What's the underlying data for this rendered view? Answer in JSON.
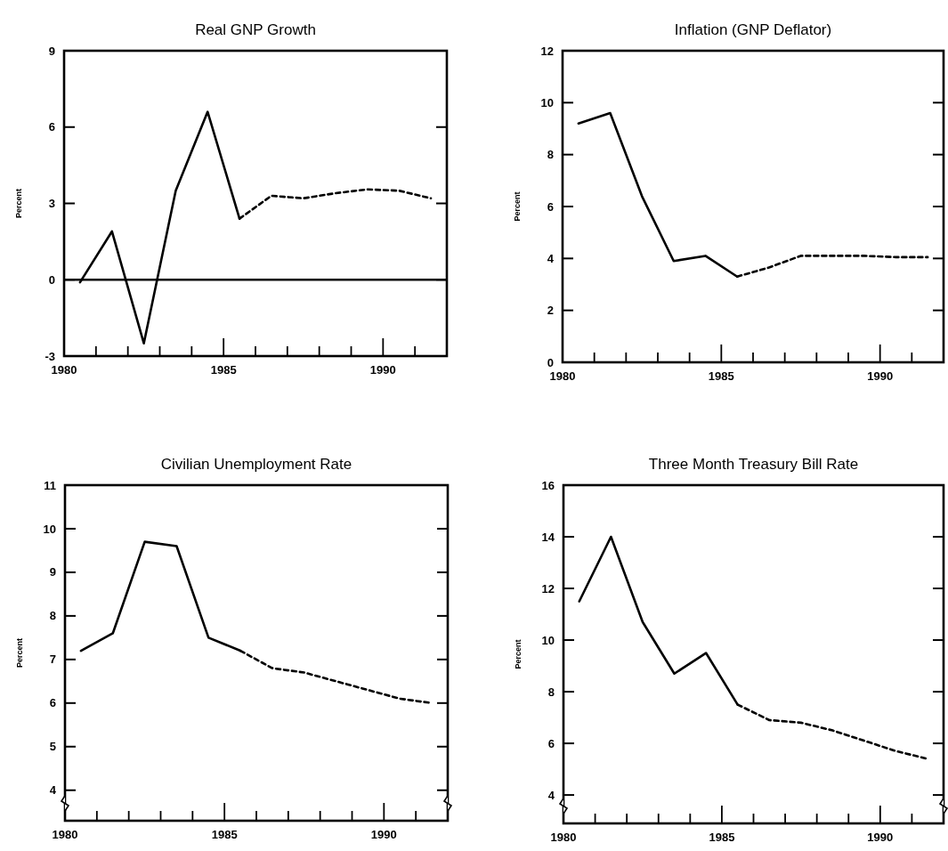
{
  "chart_data": [
    {
      "type": "line",
      "title": "Real GNP Growth",
      "ylabel": "Percent",
      "xlim": [
        1980,
        1992
      ],
      "xticks": [
        1980,
        {
          "value": 1981,
          "label": null
        },
        {
          "value": 1982,
          "label": null
        },
        {
          "value": 1983,
          "label": null
        },
        {
          "value": 1984,
          "label": null
        },
        1985,
        {
          "value": 1986,
          "label": null
        },
        {
          "value": 1987,
          "label": null
        },
        {
          "value": 1988,
          "label": null
        },
        {
          "value": 1989,
          "label": null
        },
        1990,
        {
          "value": 1991,
          "label": null
        }
      ],
      "ylim": [
        -3,
        9
      ],
      "yticks": [
        -3,
        0,
        3,
        6,
        9
      ],
      "ref_lines": [
        {
          "axis": "y",
          "value": 0,
          "color": "#000000"
        }
      ],
      "series": [
        {
          "color": "#000000",
          "line_style": "solid",
          "x": [
            1980.5,
            1981.5,
            1982.5,
            1983.5,
            1984.5,
            1985.5
          ],
          "values": [
            -0.1,
            1.9,
            -2.5,
            3.5,
            6.6,
            2.4
          ]
        },
        {
          "color": "#000000",
          "line_style": "dashed",
          "x": [
            1985.5,
            1986.5,
            1987.5,
            1988.5,
            1989.5,
            1990.5,
            1991.5
          ],
          "values": [
            2.4,
            3.3,
            3.2,
            3.4,
            3.55,
            3.5,
            3.2
          ]
        }
      ]
    },
    {
      "type": "line",
      "title": "Inflation (GNP Deflator)",
      "ylabel": "Percent",
      "xlim": [
        1980,
        1992
      ],
      "xticks": [
        1980,
        {
          "value": 1981,
          "label": null
        },
        {
          "value": 1982,
          "label": null
        },
        {
          "value": 1983,
          "label": null
        },
        {
          "value": 1984,
          "label": null
        },
        1985,
        {
          "value": 1986,
          "label": null
        },
        {
          "value": 1987,
          "label": null
        },
        {
          "value": 1988,
          "label": null
        },
        {
          "value": 1989,
          "label": null
        },
        1990,
        {
          "value": 1991,
          "label": null
        }
      ],
      "ylim": [
        0,
        12
      ],
      "yticks": [
        0,
        2,
        4,
        6,
        8,
        10,
        12
      ],
      "series": [
        {
          "color": "#000000",
          "line_style": "solid",
          "x": [
            1980.5,
            1981.5,
            1982.5,
            1983.5,
            1984.5,
            1985.5
          ],
          "values": [
            9.2,
            9.6,
            6.4,
            3.9,
            4.1,
            3.3
          ]
        },
        {
          "color": "#000000",
          "line_style": "dashed",
          "x": [
            1985.5,
            1986.5,
            1987.5,
            1988.5,
            1989.5,
            1990.5,
            1991.5
          ],
          "values": [
            3.3,
            3.65,
            4.1,
            4.1,
            4.1,
            4.05,
            4.05
          ]
        }
      ]
    },
    {
      "type": "line",
      "title": "Civilian Unemployment Rate",
      "ylabel": "Percent",
      "xlim": [
        1980,
        1992
      ],
      "xticks": [
        1980,
        {
          "value": 1981,
          "label": null
        },
        {
          "value": 1982,
          "label": null
        },
        {
          "value": 1983,
          "label": null
        },
        {
          "value": 1984,
          "label": null
        },
        1985,
        {
          "value": 1986,
          "label": null
        },
        {
          "value": 1987,
          "label": null
        },
        {
          "value": 1988,
          "label": null
        },
        {
          "value": 1989,
          "label": null
        },
        1990,
        {
          "value": 1991,
          "label": null
        }
      ],
      "ylim": [
        3.3,
        11
      ],
      "yticks": [
        4,
        5,
        6,
        7,
        8,
        9,
        10,
        11
      ],
      "series": [
        {
          "color": "#000000",
          "line_style": "solid",
          "x": [
            1980.5,
            1981.5,
            1982.5,
            1983.5,
            1984.5,
            1985.5
          ],
          "values": [
            7.2,
            7.6,
            9.7,
            9.6,
            7.5,
            7.2
          ]
        },
        {
          "color": "#000000",
          "line_style": "dashed",
          "x": [
            1985.5,
            1986.5,
            1987.5,
            1988.5,
            1989.5,
            1990.5,
            1991.5
          ],
          "values": [
            7.2,
            6.8,
            6.7,
            6.5,
            6.3,
            6.1,
            6.0
          ]
        }
      ]
    },
    {
      "type": "line",
      "title": "Three Month Treasury Bill Rate",
      "ylabel": "Percent",
      "xlim": [
        1980,
        1992
      ],
      "xticks": [
        1980,
        {
          "value": 1981,
          "label": null
        },
        {
          "value": 1982,
          "label": null
        },
        {
          "value": 1983,
          "label": null
        },
        {
          "value": 1984,
          "label": null
        },
        1985,
        {
          "value": 1986,
          "label": null
        },
        {
          "value": 1987,
          "label": null
        },
        {
          "value": 1988,
          "label": null
        },
        {
          "value": 1989,
          "label": null
        },
        1990,
        {
          "value": 1991,
          "label": null
        }
      ],
      "ylim": [
        2.9,
        16
      ],
      "yticks": [
        4,
        6,
        8,
        10,
        12,
        14,
        16
      ],
      "series": [
        {
          "color": "#000000",
          "line_style": "solid",
          "x": [
            1980.5,
            1981.5,
            1982.5,
            1983.5,
            1984.5,
            1985.5
          ],
          "values": [
            11.5,
            14.0,
            10.7,
            8.7,
            9.5,
            7.5
          ]
        },
        {
          "color": "#000000",
          "line_style": "dashed",
          "x": [
            1985.5,
            1986.5,
            1987.5,
            1988.5,
            1989.5,
            1990.5,
            1991.5
          ],
          "values": [
            7.5,
            6.9,
            6.8,
            6.5,
            6.1,
            5.7,
            5.4
          ]
        }
      ]
    }
  ]
}
